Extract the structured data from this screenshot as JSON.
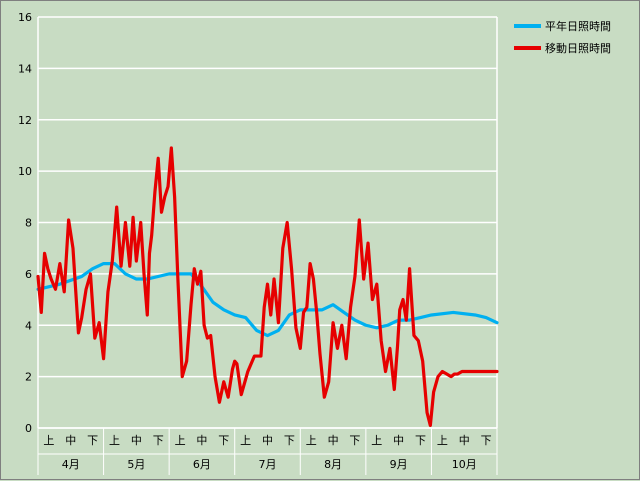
{
  "chart_data": {
    "type": "line",
    "title": "",
    "xlabel": "",
    "ylabel": "",
    "ylim": [
      0,
      16
    ],
    "yticks": [
      0,
      2,
      4,
      6,
      8,
      10,
      12,
      14,
      16
    ],
    "grid": true,
    "legend_position": "top-right",
    "months": [
      "4月",
      "5月",
      "6月",
      "7月",
      "8月",
      "9月",
      "10月"
    ],
    "dekads": [
      "上",
      "中",
      "下"
    ],
    "x_unit_note": "dekad index (0 = 4月上旬 start, 21 = 10月下旬 end)",
    "series": [
      {
        "name": "平年日照時間",
        "color": "#00b0f0",
        "x": [
          0,
          1,
          2,
          2.5,
          3,
          3.5,
          4,
          4.5,
          5,
          6,
          7,
          7.5,
          8,
          8.5,
          9,
          9.5,
          10,
          10.5,
          11,
          11.5,
          12,
          12.5,
          13,
          13.5,
          14,
          14.5,
          15,
          15.5,
          16,
          16.5,
          17,
          17.5,
          18,
          19,
          20,
          20.5,
          21
        ],
        "values": [
          5.4,
          5.6,
          5.9,
          6.2,
          6.4,
          6.4,
          6.0,
          5.8,
          5.8,
          6.0,
          6.0,
          5.5,
          4.9,
          4.6,
          4.4,
          4.3,
          3.8,
          3.6,
          3.8,
          4.4,
          4.6,
          4.6,
          4.6,
          4.8,
          4.5,
          4.2,
          4.0,
          3.9,
          4.0,
          4.2,
          4.2,
          4.3,
          4.4,
          4.5,
          4.4,
          4.3,
          4.1
        ]
      },
      {
        "name": "移動日照時間",
        "color": "#e60000",
        "x": [
          0,
          0.15,
          0.3,
          0.45,
          0.6,
          0.8,
          1.0,
          1.2,
          1.4,
          1.6,
          1.85,
          2.0,
          2.2,
          2.4,
          2.6,
          2.8,
          3.0,
          3.2,
          3.4,
          3.6,
          3.8,
          4.0,
          4.2,
          4.35,
          4.5,
          4.7,
          4.85,
          5.0,
          5.1,
          5.2,
          5.35,
          5.5,
          5.65,
          5.8,
          5.95,
          6.1,
          6.25,
          6.4,
          6.6,
          6.8,
          7.0,
          7.15,
          7.3,
          7.45,
          7.6,
          7.75,
          7.9,
          8.1,
          8.3,
          8.5,
          8.7,
          8.9,
          9.0,
          9.1,
          9.3,
          9.6,
          9.9,
          10.2,
          10.35,
          10.5,
          10.65,
          10.8,
          11.0,
          11.2,
          11.4,
          11.6,
          11.8,
          12.0,
          12.15,
          12.3,
          12.45,
          12.6,
          12.75,
          12.9,
          13.1,
          13.3,
          13.5,
          13.7,
          13.9,
          14.1,
          14.3,
          14.5,
          14.7,
          14.9,
          15.1,
          15.3,
          15.5,
          15.7,
          15.9,
          16.1,
          16.3,
          16.45,
          16.55,
          16.7,
          16.85,
          17.0,
          17.2,
          17.4,
          17.6,
          17.8,
          17.95,
          18.1,
          18.3,
          18.5,
          18.7,
          18.9,
          19.05,
          19.2,
          19.4,
          19.6,
          19.8,
          20.0,
          20.2,
          20.4,
          20.6,
          20.8,
          21.0
        ],
        "values": [
          5.9,
          4.5,
          6.8,
          6.2,
          5.8,
          5.4,
          6.4,
          5.3,
          8.1,
          7.0,
          3.7,
          4.3,
          5.4,
          6.0,
          3.5,
          4.1,
          2.7,
          5.3,
          6.5,
          8.6,
          6.3,
          8.0,
          6.3,
          8.2,
          6.5,
          8.0,
          6.0,
          4.4,
          6.8,
          7.5,
          9.2,
          10.5,
          8.4,
          9.0,
          9.4,
          10.9,
          9.0,
          5.8,
          2.0,
          2.6,
          4.8,
          6.2,
          5.6,
          6.1,
          4.0,
          3.5,
          3.6,
          2.0,
          1.0,
          1.8,
          1.2,
          2.3,
          2.6,
          2.5,
          1.3,
          2.2,
          2.8,
          2.8,
          4.7,
          5.6,
          4.4,
          5.8,
          4.1,
          7.0,
          8.0,
          6.2,
          3.9,
          3.1,
          4.5,
          4.7,
          6.4,
          5.8,
          4.5,
          2.9,
          1.2,
          1.8,
          4.1,
          3.1,
          4.0,
          2.7,
          4.7,
          5.9,
          8.1,
          5.8,
          7.2,
          5.0,
          5.6,
          3.4,
          2.2,
          3.1,
          1.5,
          3.2,
          4.6,
          5.0,
          4.2,
          6.2,
          3.6,
          3.4,
          2.6,
          0.6,
          0.1,
          1.4,
          2.0,
          2.2,
          2.1,
          2.0,
          2.1,
          2.1,
          2.2,
          2.2,
          2.2,
          2.2,
          2.2,
          2.2,
          2.2,
          2.2,
          2.2
        ]
      }
    ]
  }
}
